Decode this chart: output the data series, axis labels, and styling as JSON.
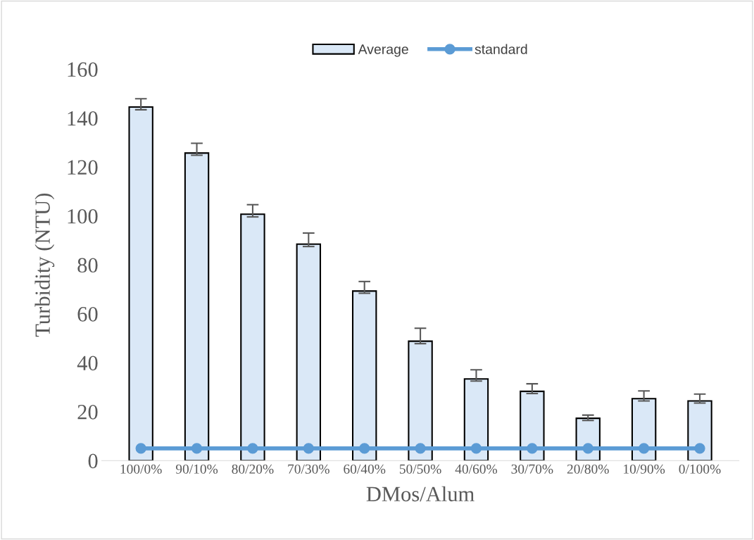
{
  "chart_data": {
    "type": "bar",
    "xlabel": "DMos/Alum",
    "ylabel": "Turbidity (NTU)",
    "categories": [
      "100/0%",
      "90/10%",
      "80/20%",
      "70/30%",
      "60/40%",
      "50/50%",
      "40/60%",
      "30/70%",
      "20/80%",
      "10/90%",
      "0/100%"
    ],
    "series": [
      {
        "name": "Average",
        "color": "#dae8f7",
        "values": [
          144.5,
          125.7,
          100.7,
          88.5,
          69.3,
          48.8,
          33.4,
          28.3,
          17.3,
          25.3,
          24.4
        ],
        "errors": [
          [
            143.4,
            147.9
          ],
          [
            124.8,
            129.7
          ],
          [
            99.6,
            104.6
          ],
          [
            87.5,
            93.0
          ],
          [
            68.4,
            73.2
          ],
          [
            47.8,
            54.1
          ],
          [
            32.5,
            37.1
          ],
          [
            27.4,
            31.4
          ],
          [
            16.4,
            18.6
          ],
          [
            24.4,
            28.5
          ],
          [
            23.5,
            27.2
          ]
        ]
      },
      {
        "name": "standard",
        "type": "line",
        "color": "#5b9bd5",
        "marker": "circle",
        "line_style": "solid",
        "values": [
          5,
          5,
          5,
          5,
          5,
          5,
          5,
          5,
          5,
          5,
          5
        ]
      }
    ],
    "ylim": [
      0,
      160
    ],
    "yticks": [
      0,
      20,
      40,
      60,
      80,
      100,
      120,
      140,
      160
    ],
    "grid": false,
    "legend": "top"
  }
}
